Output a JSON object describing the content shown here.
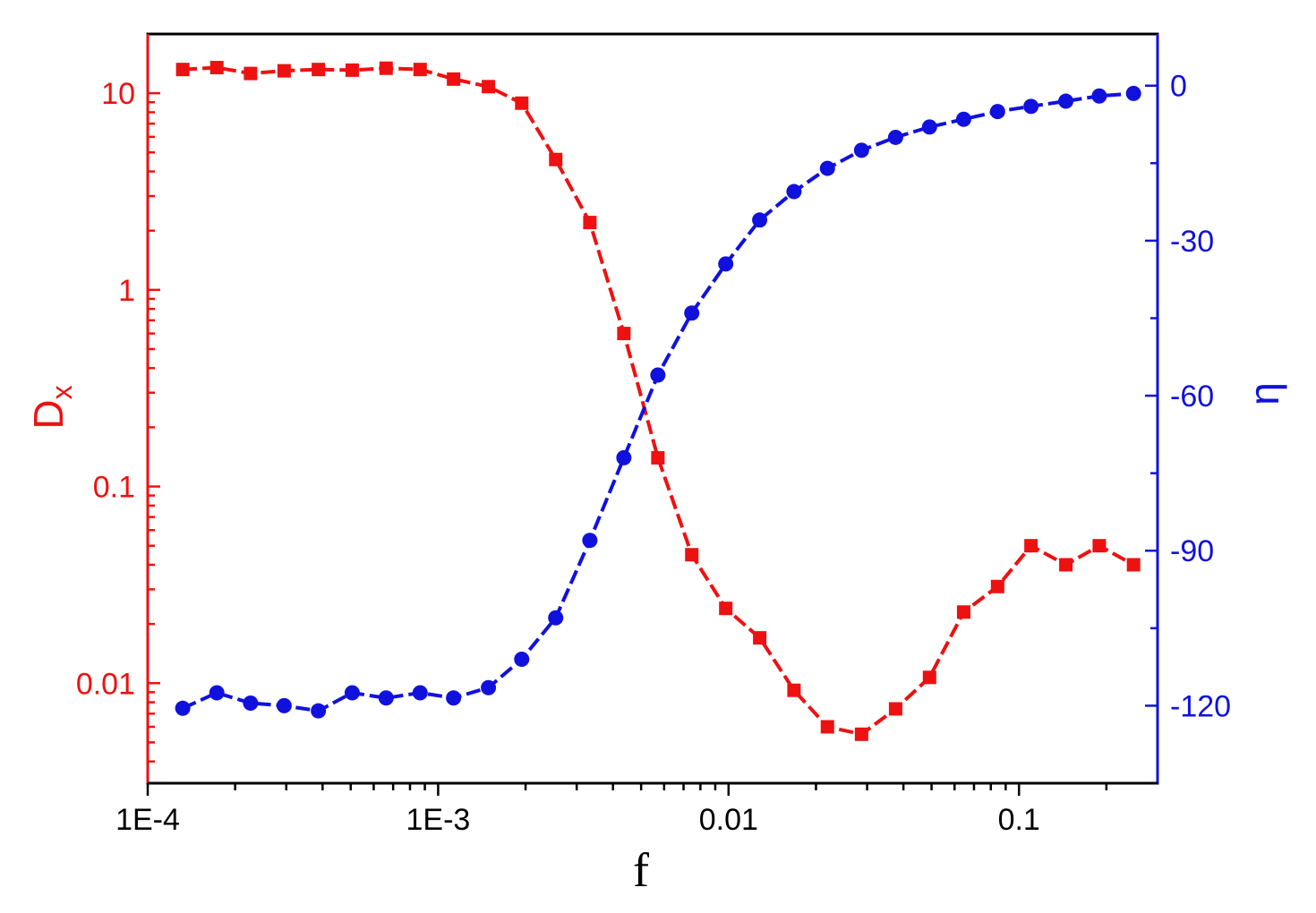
{
  "chart_data": {
    "type": "line",
    "xlabel": "f",
    "xscale": "log",
    "xlim": [
      0.0001,
      0.3
    ],
    "xticks": [
      {
        "value": 0.0001,
        "label": "1E-4"
      },
      {
        "value": 0.001,
        "label": "1E-3"
      },
      {
        "value": 0.01,
        "label": "0.01"
      },
      {
        "value": 0.1,
        "label": "0.1"
      }
    ],
    "y_left": {
      "label_main": "D",
      "label_sub": "x",
      "scale": "log",
      "lim": [
        0.0031,
        20
      ],
      "ticks": [
        {
          "value": 10,
          "label": "10"
        },
        {
          "value": 1,
          "label": "1"
        },
        {
          "value": 0.1,
          "label": "0.1"
        },
        {
          "value": 0.01,
          "label": "0.01"
        }
      ],
      "color": "#ee1111"
    },
    "y_right": {
      "label": "η",
      "scale": "linear",
      "lim": [
        -135,
        10
      ],
      "ticks": [
        {
          "value": 0,
          "label": "0"
        },
        {
          "value": -30,
          "label": "-30"
        },
        {
          "value": -60,
          "label": "-60"
        },
        {
          "value": -90,
          "label": "-90"
        },
        {
          "value": -120,
          "label": "-120"
        }
      ],
      "color": "#1111dd"
    },
    "grid": false,
    "legend": "none",
    "x": [
      0.000132,
      0.000173,
      0.000226,
      0.000295,
      0.000387,
      0.000506,
      0.000662,
      0.000867,
      0.00113,
      0.00149,
      0.00194,
      0.00254,
      0.00333,
      0.00436,
      0.00571,
      0.00747,
      0.00978,
      0.0128,
      0.0168,
      0.0219,
      0.0287,
      0.0376,
      0.0492,
      0.0645,
      0.0844,
      0.11,
      0.145,
      0.189,
      0.248
    ],
    "series": [
      {
        "axis": "left",
        "marker": "square",
        "color": "#ee1111",
        "values": [
          13.2,
          13.5,
          12.6,
          13.0,
          13.2,
          13.1,
          13.4,
          13.2,
          11.8,
          10.8,
          8.9,
          4.6,
          2.2,
          0.6,
          0.14,
          0.045,
          0.024,
          0.017,
          0.0092,
          0.006,
          0.0055,
          0.0074,
          0.0107,
          0.023,
          0.031,
          0.05,
          0.04,
          0.05,
          0.04
        ]
      },
      {
        "axis": "right",
        "marker": "circle",
        "color": "#1111dd",
        "values": [
          -120.5,
          -117.5,
          -119.5,
          -120,
          -121,
          -117.5,
          -118.5,
          -117.5,
          -118.5,
          -116.5,
          -111,
          -103,
          -88,
          -72,
          -56,
          -44,
          -34.5,
          -26,
          -20.5,
          -16,
          -12.5,
          -10,
          -8,
          -6.5,
          -5,
          -4,
          -3,
          -2,
          -1.5
        ]
      }
    ]
  }
}
